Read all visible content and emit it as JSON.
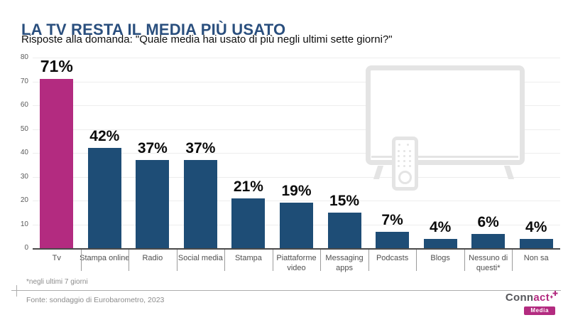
{
  "header": {
    "title": "LA TV RESTA IL MEDIA PIÙ USATO",
    "subtitle": "Risposte alla domanda: \"Quale media hai usato di più negli ultimi sette giorni?\""
  },
  "chart_data": {
    "type": "bar",
    "title": "LA TV RESTA IL MEDIA PIÙ USATO",
    "categories": [
      "Tv",
      "Stampa online",
      "Radio",
      "Social media",
      "Stampa",
      "Piattaforme video",
      "Messaging apps",
      "Podcasts",
      "Blogs",
      "Nessuno di questi*",
      "Non sa"
    ],
    "values": [
      71,
      42,
      37,
      37,
      21,
      19,
      15,
      7,
      4,
      6,
      4
    ],
    "value_labels": [
      "71%",
      "42%",
      "37%",
      "37%",
      "21%",
      "19%",
      "15%",
      "7%",
      "4%",
      "6%",
      "4%"
    ],
    "xlabel": "",
    "ylabel": "",
    "ylim": [
      0,
      80
    ],
    "yticks": [
      0,
      10,
      20,
      30,
      40,
      50,
      60,
      70,
      80
    ],
    "grid": true,
    "legend": "none",
    "highlight_index": 0,
    "colors": {
      "highlight": "#b32b80",
      "default": "#1e4d76"
    }
  },
  "watermark_icon": "tv-with-remote",
  "footer": {
    "footnote": "*negli ultimi 7 giorni",
    "source": "Fonte: sondaggio di Eurobarometro, 2023"
  },
  "logo": {
    "brand_prefix": "Conn",
    "brand_suffix": "act",
    "sparkle_icon": "sparkle",
    "badge": "Media"
  },
  "palette": {
    "title_blue": "#2a4f7e",
    "bar_blue": "#1e4d76",
    "bar_magenta": "#b32b80",
    "grid": "#ededed",
    "axis": "#4a4a4a",
    "watermark_gray": "#e4e4e4",
    "footer_gray": "#8c8c8c"
  }
}
